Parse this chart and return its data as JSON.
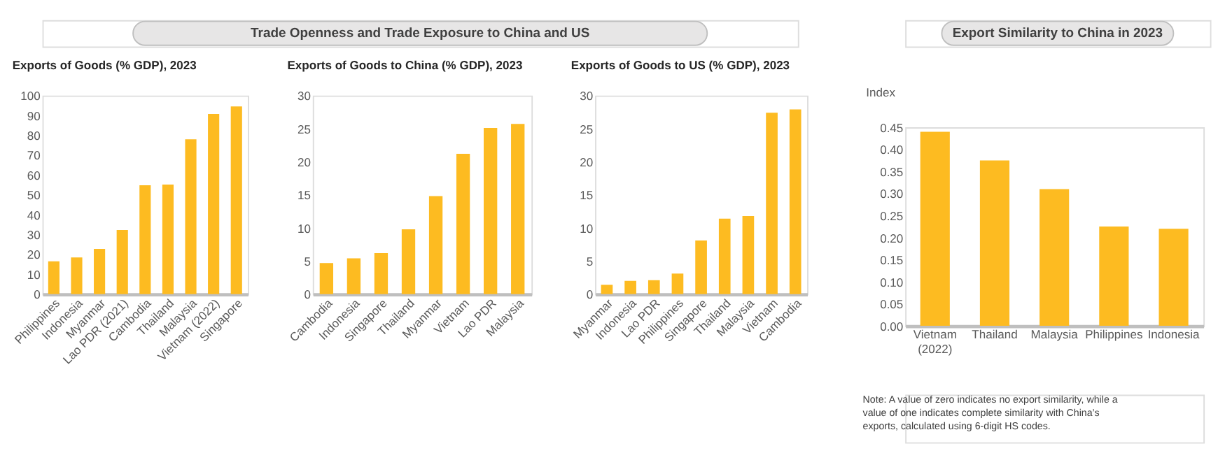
{
  "chart_data": [
    {
      "type": "bar",
      "title": "Exports of Goods (% GDP), 2023",
      "annotations": [
        "Trade Openness and Trade Exposure to China and US"
      ],
      "categories": [
        "Philippines",
        "Indonesia",
        "Myanmar",
        "Lao PDR (2021)",
        "Cambodia",
        "Thailand",
        "Malaysia",
        "Vietnam (2022)",
        "Singapore"
      ],
      "values": [
        16.5,
        18.5,
        22.8,
        32.3,
        54.8,
        55.2,
        78,
        90.7,
        94.5
      ],
      "color": "#fdbb21",
      "ylim": [
        0,
        100
      ],
      "yticks": [
        0,
        10,
        20,
        30,
        40,
        50,
        60,
        70,
        80,
        90,
        100
      ],
      "grid": false
    },
    {
      "type": "bar",
      "title": "Exports of Goods to China (% GDP), 2023",
      "categories": [
        "Cambodia",
        "Indonesia",
        "Singapore",
        "Thailand",
        "Myanmar",
        "Vietnam",
        "Lao PDR",
        "Malaysia"
      ],
      "values": [
        4.7,
        5.4,
        6.2,
        9.8,
        14.8,
        21.2,
        25.1,
        25.7
      ],
      "color": "#fdbb21",
      "ylim": [
        0,
        30
      ],
      "yticks": [
        0,
        5,
        10,
        15,
        20,
        25,
        30
      ],
      "grid": false
    },
    {
      "type": "bar",
      "title": "Exports of Goods to US (% GDP), 2023",
      "categories": [
        "Myanmar",
        "Indonesia",
        "Lao PDR",
        "Philippines",
        "Singapore",
        "Thailand",
        "Malaysia",
        "Vietnam",
        "Cambodia"
      ],
      "values": [
        1.4,
        2.0,
        2.1,
        3.1,
        8.1,
        11.4,
        11.8,
        27.4,
        27.9
      ],
      "color": "#fdbb21",
      "ylim": [
        0,
        30
      ],
      "yticks": [
        0,
        5,
        10,
        15,
        20,
        25,
        30
      ],
      "grid": false
    },
    {
      "type": "bar",
      "title": "Export Similarity to China in 2023",
      "ylabel": "Index",
      "annotations": [
        "Note: A value of zero indicates no export similarity, while a value of one indicates complete similarity with China’s exports, calculated using 6-digit HS codes."
      ],
      "categories": [
        "Vietnam (2022)",
        "Thailand",
        "Malaysia",
        "Philippines",
        "Indonesia"
      ],
      "values": [
        0.44,
        0.375,
        0.31,
        0.225,
        0.22
      ],
      "color": "#fdbb21",
      "ylim": [
        0,
        0.45
      ],
      "yticks": [
        {
          "value": 0,
          "label": "0.00"
        },
        0.05,
        {
          "value": 0.1,
          "label": "0.10"
        },
        0.15,
        {
          "value": 0.2,
          "label": "0.20"
        },
        0.25,
        {
          "value": 0.3,
          "label": "0.30"
        },
        0.35,
        {
          "value": 0.4,
          "label": "0.40"
        },
        0.45
      ],
      "grid": false
    }
  ]
}
